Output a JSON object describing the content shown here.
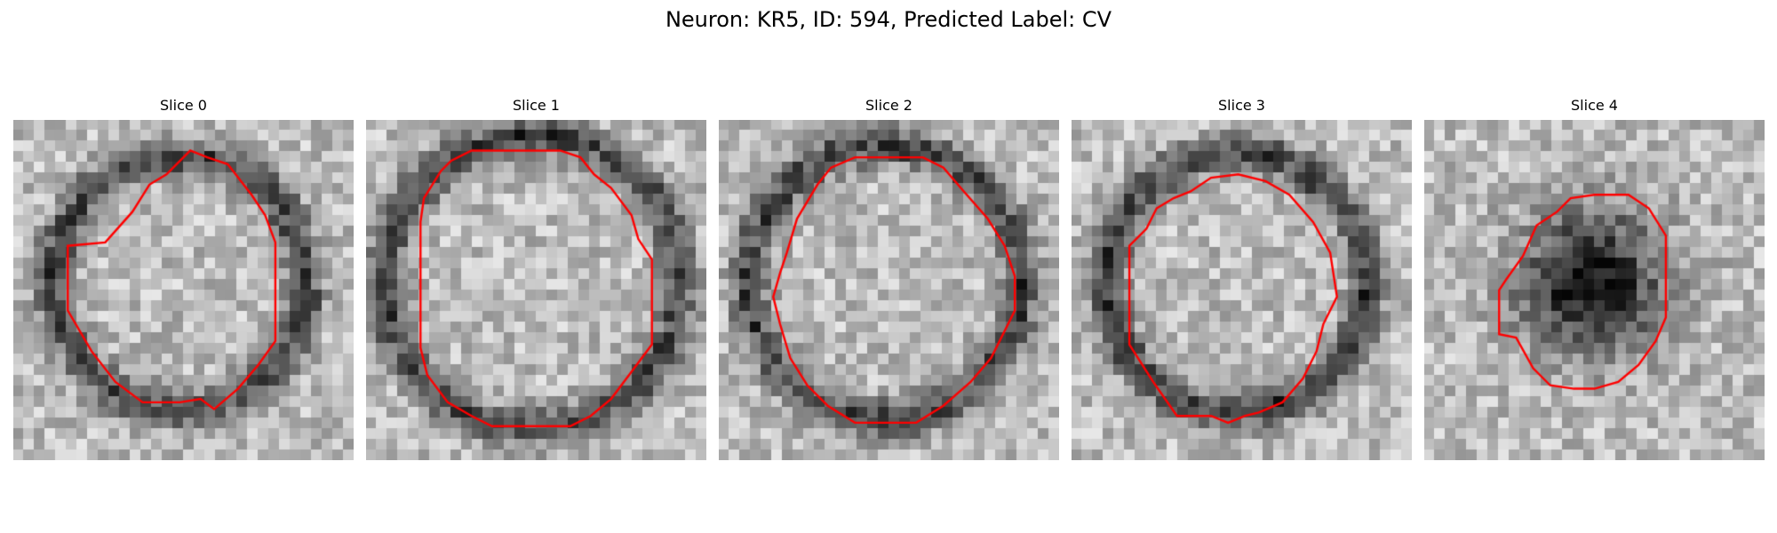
{
  "figure": {
    "title": "Neuron: KR5, ID: 594, Predicted Label: CV"
  },
  "contour_color": "#ff0000",
  "slices": [
    {
      "title": "Slice 0",
      "seed": 11,
      "dark_ring": true,
      "dark_core": false,
      "ring_radius": 0.37,
      "contour": [
        [
          0.27,
          0.36
        ],
        [
          0.35,
          0.27
        ],
        [
          0.4,
          0.19
        ],
        [
          0.45,
          0.16
        ],
        [
          0.52,
          0.09
        ],
        [
          0.57,
          0.11
        ],
        [
          0.63,
          0.13
        ],
        [
          0.7,
          0.22
        ],
        [
          0.74,
          0.28
        ],
        [
          0.77,
          0.36
        ],
        [
          0.77,
          0.65
        ],
        [
          0.72,
          0.72
        ],
        [
          0.66,
          0.79
        ],
        [
          0.59,
          0.85
        ],
        [
          0.55,
          0.82
        ],
        [
          0.49,
          0.83
        ],
        [
          0.38,
          0.83
        ],
        [
          0.3,
          0.77
        ],
        [
          0.23,
          0.68
        ],
        [
          0.16,
          0.56
        ],
        [
          0.16,
          0.37
        ]
      ]
    },
    {
      "title": "Slice 1",
      "seed": 23,
      "dark_ring": true,
      "dark_core": false,
      "ring_radius": 0.43,
      "contour": [
        [
          0.17,
          0.23
        ],
        [
          0.22,
          0.15
        ],
        [
          0.25,
          0.12
        ],
        [
          0.31,
          0.09
        ],
        [
          0.45,
          0.09
        ],
        [
          0.57,
          0.09
        ],
        [
          0.63,
          0.11
        ],
        [
          0.67,
          0.16
        ],
        [
          0.72,
          0.2
        ],
        [
          0.78,
          0.28
        ],
        [
          0.8,
          0.35
        ],
        [
          0.84,
          0.41
        ],
        [
          0.84,
          0.66
        ],
        [
          0.78,
          0.74
        ],
        [
          0.72,
          0.82
        ],
        [
          0.66,
          0.87
        ],
        [
          0.6,
          0.9
        ],
        [
          0.53,
          0.9
        ],
        [
          0.37,
          0.9
        ],
        [
          0.31,
          0.87
        ],
        [
          0.24,
          0.83
        ],
        [
          0.18,
          0.75
        ],
        [
          0.16,
          0.67
        ],
        [
          0.16,
          0.3
        ]
      ]
    },
    {
      "title": "Slice 2",
      "seed": 37,
      "dark_ring": true,
      "dark_core": false,
      "ring_radius": 0.4,
      "contour": [
        [
          0.23,
          0.29
        ],
        [
          0.29,
          0.19
        ],
        [
          0.33,
          0.14
        ],
        [
          0.4,
          0.11
        ],
        [
          0.6,
          0.11
        ],
        [
          0.66,
          0.14
        ],
        [
          0.72,
          0.21
        ],
        [
          0.79,
          0.29
        ],
        [
          0.84,
          0.37
        ],
        [
          0.87,
          0.46
        ],
        [
          0.87,
          0.56
        ],
        [
          0.84,
          0.62
        ],
        [
          0.8,
          0.7
        ],
        [
          0.74,
          0.77
        ],
        [
          0.66,
          0.84
        ],
        [
          0.58,
          0.89
        ],
        [
          0.4,
          0.89
        ],
        [
          0.32,
          0.84
        ],
        [
          0.26,
          0.78
        ],
        [
          0.21,
          0.7
        ],
        [
          0.18,
          0.6
        ],
        [
          0.16,
          0.52
        ],
        [
          0.18,
          0.45
        ],
        [
          0.2,
          0.39
        ]
      ]
    },
    {
      "title": "Slice 3",
      "seed": 51,
      "dark_ring": true,
      "dark_core": false,
      "ring_radius": 0.38,
      "contour": [
        [
          0.17,
          0.37
        ],
        [
          0.22,
          0.32
        ],
        [
          0.25,
          0.26
        ],
        [
          0.3,
          0.23
        ],
        [
          0.35,
          0.21
        ],
        [
          0.41,
          0.17
        ],
        [
          0.49,
          0.16
        ],
        [
          0.57,
          0.18
        ],
        [
          0.64,
          0.22
        ],
        [
          0.71,
          0.3
        ],
        [
          0.76,
          0.39
        ],
        [
          0.78,
          0.52
        ],
        [
          0.74,
          0.6
        ],
        [
          0.72,
          0.68
        ],
        [
          0.68,
          0.76
        ],
        [
          0.62,
          0.83
        ],
        [
          0.55,
          0.86
        ],
        [
          0.51,
          0.87
        ],
        [
          0.46,
          0.89
        ],
        [
          0.41,
          0.87
        ],
        [
          0.31,
          0.87
        ],
        [
          0.24,
          0.77
        ],
        [
          0.17,
          0.66
        ]
      ]
    },
    {
      "title": "Slice 4",
      "seed": 67,
      "dark_ring": false,
      "dark_core": true,
      "ring_radius": 0.26,
      "contour": [
        [
          0.24,
          0.47
        ],
        [
          0.29,
          0.4
        ],
        [
          0.33,
          0.31
        ],
        [
          0.39,
          0.27
        ],
        [
          0.43,
          0.23
        ],
        [
          0.5,
          0.22
        ],
        [
          0.6,
          0.22
        ],
        [
          0.66,
          0.26
        ],
        [
          0.71,
          0.34
        ],
        [
          0.71,
          0.58
        ],
        [
          0.68,
          0.65
        ],
        [
          0.63,
          0.72
        ],
        [
          0.57,
          0.77
        ],
        [
          0.5,
          0.79
        ],
        [
          0.44,
          0.79
        ],
        [
          0.37,
          0.78
        ],
        [
          0.32,
          0.73
        ],
        [
          0.27,
          0.64
        ],
        [
          0.22,
          0.63
        ],
        [
          0.22,
          0.5
        ]
      ]
    }
  ]
}
